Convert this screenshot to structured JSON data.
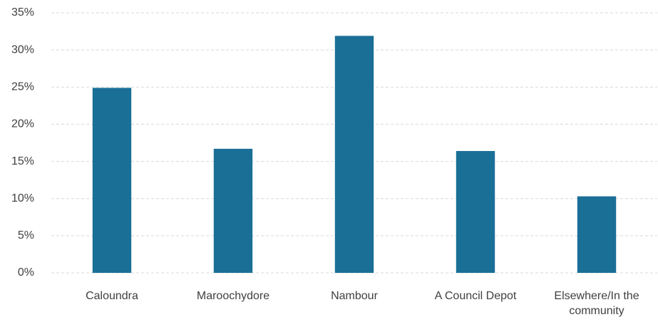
{
  "chart_data": {
    "type": "bar",
    "categories": [
      "Caloundra",
      "Maroochydore",
      "Nambour",
      "A Council Depot",
      "Elsewhere/In the community"
    ],
    "values": [
      24.9,
      16.7,
      31.9,
      16.4,
      10.3
    ],
    "color": "#1a6f96",
    "ylim": [
      0,
      35
    ],
    "yticks": [
      {
        "value": 0,
        "label": "0%"
      },
      {
        "value": 5,
        "label": "5%"
      },
      {
        "value": 10,
        "label": "10%"
      },
      {
        "value": 15,
        "label": "15%"
      },
      {
        "value": 20,
        "label": "20%"
      },
      {
        "value": 25,
        "label": "25%"
      },
      {
        "value": 30,
        "label": "30%"
      },
      {
        "value": 35,
        "label": "35%"
      }
    ],
    "grid": true
  }
}
